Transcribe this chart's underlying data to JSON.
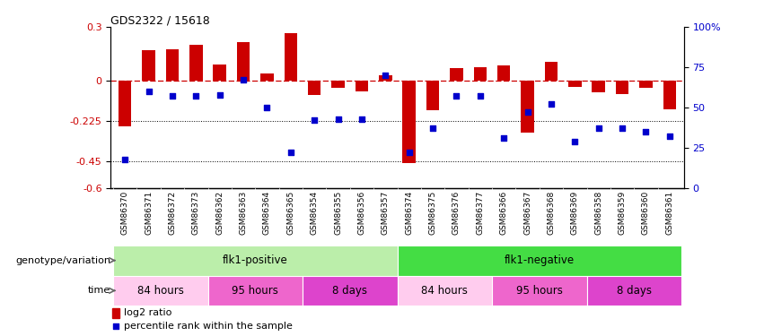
{
  "title": "GDS2322 / 15618",
  "samples": [
    "GSM86370",
    "GSM86371",
    "GSM86372",
    "GSM86373",
    "GSM86362",
    "GSM86363",
    "GSM86364",
    "GSM86365",
    "GSM86354",
    "GSM86355",
    "GSM86356",
    "GSM86357",
    "GSM86374",
    "GSM86375",
    "GSM86376",
    "GSM86377",
    "GSM86366",
    "GSM86367",
    "GSM86368",
    "GSM86369",
    "GSM86358",
    "GSM86359",
    "GSM86360",
    "GSM86361"
  ],
  "log2_ratio": [
    -0.255,
    0.17,
    0.175,
    0.2,
    0.09,
    0.215,
    0.04,
    0.265,
    -0.08,
    -0.04,
    -0.06,
    0.03,
    -0.46,
    -0.165,
    0.07,
    0.075,
    0.085,
    -0.29,
    0.105,
    -0.035,
    -0.065,
    -0.075,
    -0.04,
    -0.16
  ],
  "percentile": [
    18,
    60,
    57,
    57,
    58,
    67,
    50,
    22,
    42,
    43,
    43,
    70,
    22,
    37,
    57,
    57,
    31,
    47,
    52,
    29,
    37,
    37,
    35,
    32
  ],
  "bar_color": "#cc0000",
  "dot_color": "#0000cc",
  "ref_line_color": "#cc0000",
  "grid_color": "#000000",
  "ylim_left": [
    -0.6,
    0.3
  ],
  "ylim_right": [
    0,
    100
  ],
  "yticks_left": [
    -0.6,
    -0.45,
    -0.225,
    0.0,
    0.3
  ],
  "yticks_right": [
    0,
    25,
    50,
    75,
    100
  ],
  "ytick_labels_left": [
    "-0.6",
    "-0.45",
    "-0.225",
    "0",
    "0.3"
  ],
  "ytick_labels_right": [
    "0",
    "25",
    "50",
    "75",
    "100%"
  ],
  "groups": [
    {
      "label": "flk1-positive",
      "start": 0,
      "end": 12,
      "color": "#bbeeaa"
    },
    {
      "label": "flk1-negative",
      "start": 12,
      "end": 24,
      "color": "#44dd44"
    }
  ],
  "time_groups": [
    {
      "label": "84 hours",
      "start": 0,
      "end": 4,
      "color": "#ffccee"
    },
    {
      "label": "95 hours",
      "start": 4,
      "end": 8,
      "color": "#ee66cc"
    },
    {
      "label": "8 days",
      "start": 8,
      "end": 12,
      "color": "#dd44cc"
    },
    {
      "label": "84 hours",
      "start": 12,
      "end": 16,
      "color": "#ffccee"
    },
    {
      "label": "95 hours",
      "start": 16,
      "end": 20,
      "color": "#ee66cc"
    },
    {
      "label": "8 days",
      "start": 20,
      "end": 24,
      "color": "#dd44cc"
    }
  ],
  "genotype_label": "genotype/variation",
  "time_label": "time",
  "legend_bar_label": "log2 ratio",
  "legend_dot_label": "percentile rank within the sample",
  "bg_color": "#ffffff",
  "tick_bg_color": "#cccccc"
}
